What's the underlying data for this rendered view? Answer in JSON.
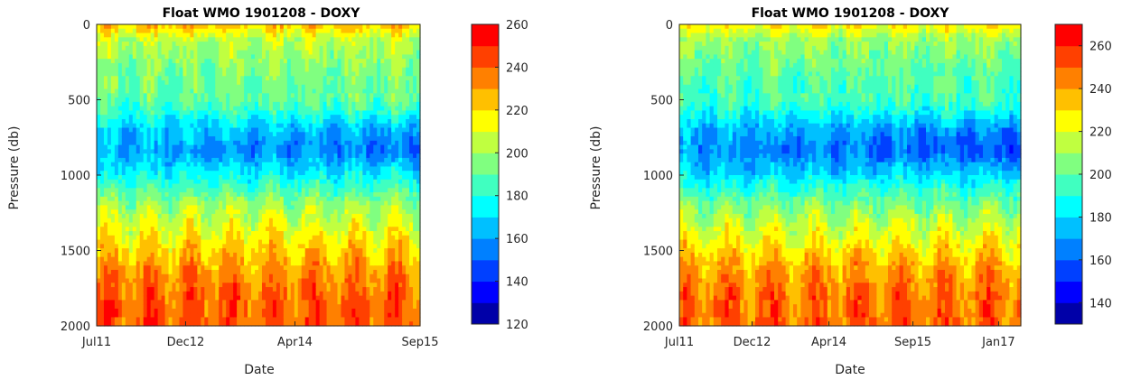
{
  "chart_data": [
    {
      "type": "heatmap",
      "subtype": "contour",
      "title": "Float WMO 1901208 - DOXY",
      "xlabel": "Date",
      "ylabel": "Pressure (db)",
      "x_ticks": [
        "Jul11",
        "Dec12",
        "Apr14",
        "Sep15"
      ],
      "y_ticks": [
        "0",
        "500",
        "1000",
        "1500",
        "2000"
      ],
      "y_reversed": true,
      "ylim": [
        0,
        2000
      ],
      "colorbar": {
        "min": 120,
        "max": 260,
        "step": 10,
        "ticks": [
          "120",
          "140",
          "160",
          "180",
          "200",
          "220",
          "240",
          "260"
        ],
        "colors": [
          "#0000a8",
          "#0000ff",
          "#0040ff",
          "#0080ff",
          "#00c0ff",
          "#00ffff",
          "#40ffc0",
          "#80ff80",
          "#c0ff40",
          "#ffff00",
          "#ffc000",
          "#ff8000",
          "#ff4000",
          "#ff0000"
        ]
      },
      "profile_levels": [
        {
          "pressure": 0,
          "value": 225
        },
        {
          "pressure": 100,
          "value": 205
        },
        {
          "pressure": 300,
          "value": 195
        },
        {
          "pressure": 500,
          "value": 190
        },
        {
          "pressure": 700,
          "value": 170
        },
        {
          "pressure": 850,
          "value": 162
        },
        {
          "pressure": 1000,
          "value": 175
        },
        {
          "pressure": 1200,
          "value": 200
        },
        {
          "pressure": 1400,
          "value": 215
        },
        {
          "pressure": 1600,
          "value": 230
        },
        {
          "pressure": 1800,
          "value": 240
        },
        {
          "pressure": 2000,
          "value": 242
        }
      ]
    },
    {
      "type": "heatmap",
      "subtype": "contour",
      "title": "Float WMO 1901208 - DOXY",
      "xlabel": "Date",
      "ylabel": "Pressure (db)",
      "x_ticks": [
        "Jul11",
        "Dec12",
        "Apr14",
        "Sep15",
        "Jan17"
      ],
      "y_ticks": [
        "0",
        "500",
        "1000",
        "1500",
        "2000"
      ],
      "y_reversed": true,
      "ylim": [
        0,
        2000
      ],
      "colorbar": {
        "min": 130,
        "max": 270,
        "step": 10,
        "ticks": [
          "140",
          "160",
          "180",
          "200",
          "220",
          "240",
          "260"
        ],
        "colors": [
          "#0000a8",
          "#0000ff",
          "#0040ff",
          "#0080ff",
          "#00c0ff",
          "#00ffff",
          "#40ffc0",
          "#80ff80",
          "#c0ff40",
          "#ffff00",
          "#ffc000",
          "#ff8000",
          "#ff4000",
          "#ff0000"
        ]
      },
      "profile_levels": [
        {
          "pressure": 0,
          "value": 228
        },
        {
          "pressure": 100,
          "value": 210
        },
        {
          "pressure": 300,
          "value": 200
        },
        {
          "pressure": 500,
          "value": 195
        },
        {
          "pressure": 700,
          "value": 175
        },
        {
          "pressure": 850,
          "value": 168
        },
        {
          "pressure": 1000,
          "value": 180
        },
        {
          "pressure": 1200,
          "value": 205
        },
        {
          "pressure": 1400,
          "value": 222
        },
        {
          "pressure": 1600,
          "value": 238
        },
        {
          "pressure": 1800,
          "value": 248
        },
        {
          "pressure": 2000,
          "value": 250
        }
      ]
    }
  ]
}
